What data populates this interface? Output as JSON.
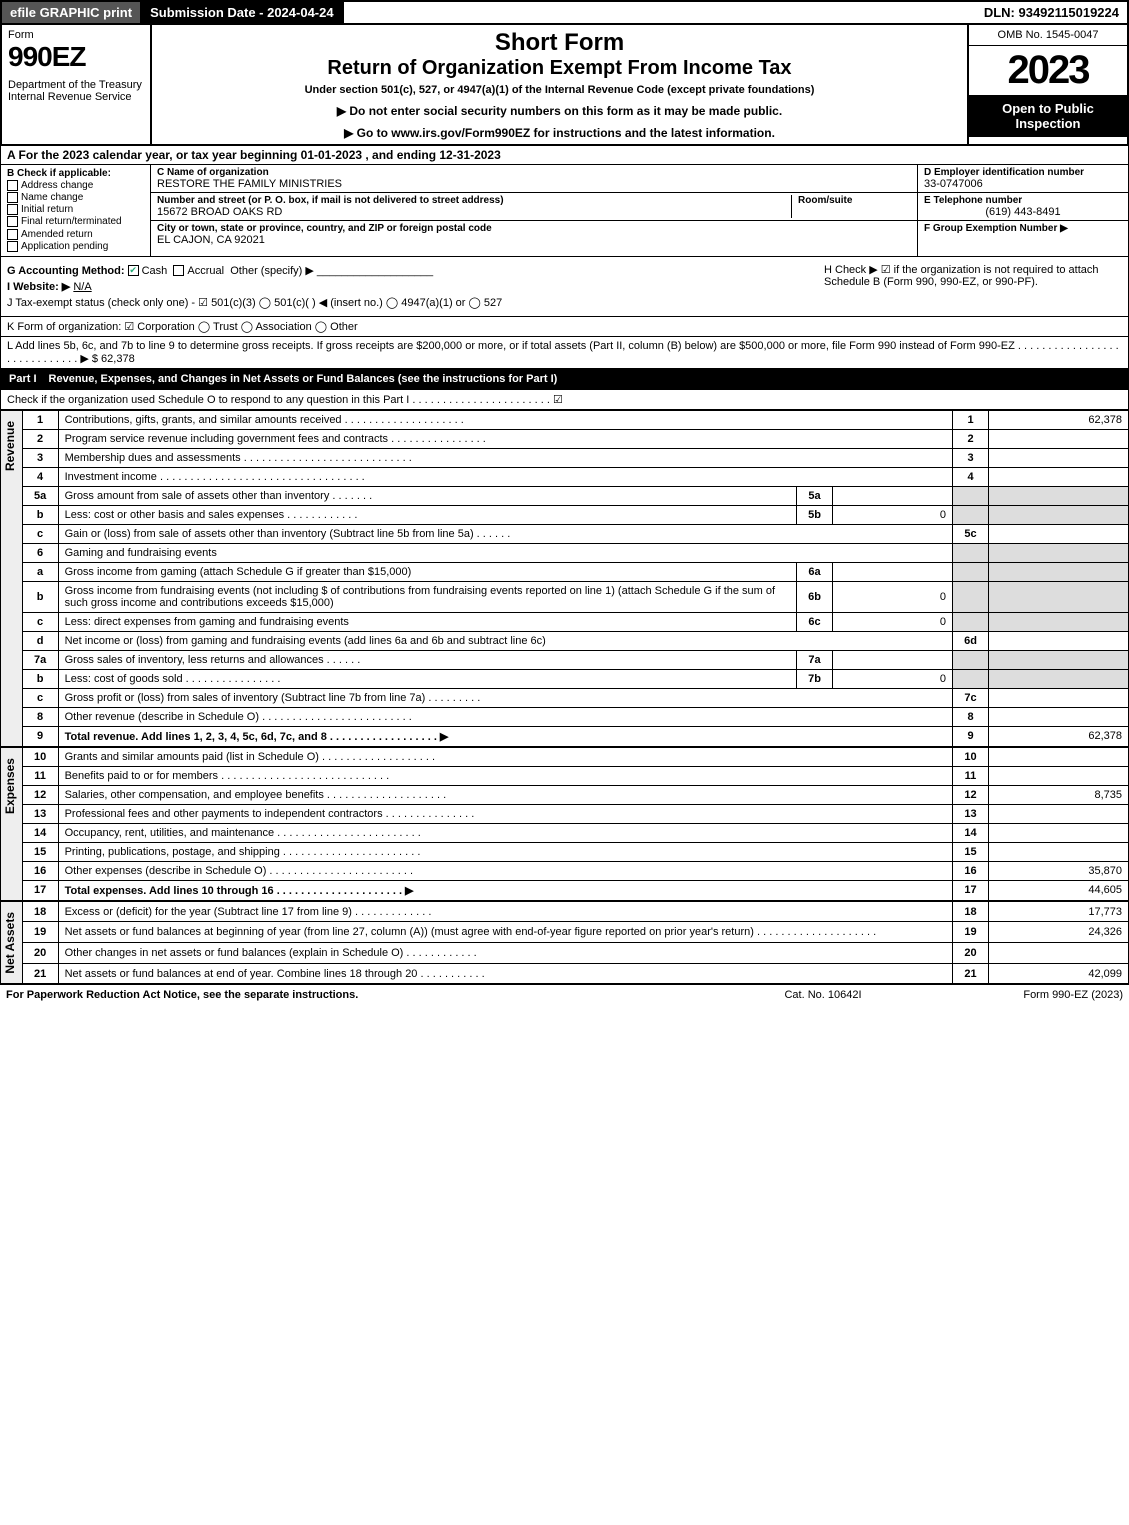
{
  "topbar": {
    "efile": "efile GRAPHIC print",
    "submission": "Submission Date - 2024-04-24",
    "dln": "DLN: 93492115019224"
  },
  "header": {
    "form_label": "Form",
    "form_number": "990EZ",
    "dept": "Department of the Treasury\nInternal Revenue Service",
    "title1": "Short Form",
    "title2": "Return of Organization Exempt From Income Tax",
    "subtitle": "Under section 501(c), 527, or 4947(a)(1) of the Internal Revenue Code (except private foundations)",
    "warn": "▶ Do not enter social security numbers on this form as it may be made public.",
    "goto": "▶ Go to www.irs.gov/Form990EZ for instructions and the latest information.",
    "omb": "OMB No. 1545-0047",
    "year": "2023",
    "inspect": "Open to Public Inspection"
  },
  "rowA": "A  For the 2023 calendar year, or tax year beginning 01-01-2023 , and ending 12-31-2023",
  "B": {
    "header": "B  Check if applicable:",
    "address_change": "Address change",
    "name_change": "Name change",
    "initial_return": "Initial return",
    "final_return": "Final return/terminated",
    "amended": "Amended return",
    "app_pending": "Application pending"
  },
  "C": {
    "label": "C Name of organization",
    "name": "RESTORE THE FAMILY MINISTRIES",
    "street_label": "Number and street (or P. O. box, if mail is not delivered to street address)",
    "street": "15672 BROAD OAKS RD",
    "room_label": "Room/suite",
    "city_label": "City or town, state or province, country, and ZIP or foreign postal code",
    "city": "EL CAJON, CA  92021"
  },
  "D": {
    "label": "D Employer identification number",
    "value": "33-0747006"
  },
  "E": {
    "label": "E Telephone number",
    "value": "(619) 443-8491"
  },
  "F": {
    "label": "F Group Exemption Number  ▶",
    "value": ""
  },
  "G": {
    "label": "G Accounting Method:",
    "cash": "Cash",
    "accrual": "Accrual",
    "other": "Other (specify) ▶"
  },
  "H": {
    "text": "H  Check ▶ ☑ if the organization is not required to attach Schedule B (Form 990, 990-EZ, or 990-PF)."
  },
  "I": {
    "label": "I Website: ▶",
    "value": "N/A"
  },
  "J": {
    "label": "J Tax-exempt status (check only one) - ☑ 501(c)(3)  ◯ 501(c)(  ) ◀ (insert no.)  ◯ 4947(a)(1) or  ◯ 527"
  },
  "K": {
    "label": "K Form of organization:  ☑ Corporation  ◯ Trust  ◯ Association  ◯ Other"
  },
  "L": {
    "text": "L Add lines 5b, 6c, and 7b to line 9 to determine gross receipts. If gross receipts are $200,000 or more, or if total assets (Part II, column (B) below) are $500,000 or more, file Form 990 instead of Form 990-EZ . . . . . . . . . . . . . . . . . . . . . . . . . . . . . ▶ $ 62,378"
  },
  "partI": {
    "label": "Part I",
    "title": "Revenue, Expenses, and Changes in Net Assets or Fund Balances (see the instructions for Part I)",
    "check_line": "Check if the organization used Schedule O to respond to any question in this Part I . . . . . . . . . . . . . . . . . . . . . . . ☑"
  },
  "sidebars": {
    "revenue": "Revenue",
    "expenses": "Expenses",
    "netassets": "Net Assets"
  },
  "lines": {
    "l1": {
      "num": "1",
      "desc": "Contributions, gifts, grants, and similar amounts received",
      "rnum": "1",
      "rval": "62,378"
    },
    "l2": {
      "num": "2",
      "desc": "Program service revenue including government fees and contracts",
      "rnum": "2",
      "rval": ""
    },
    "l3": {
      "num": "3",
      "desc": "Membership dues and assessments",
      "rnum": "3",
      "rval": ""
    },
    "l4": {
      "num": "4",
      "desc": "Investment income",
      "rnum": "4",
      "rval": ""
    },
    "l5a": {
      "num": "5a",
      "desc": "Gross amount from sale of assets other than inventory",
      "subnum": "5a",
      "subval": ""
    },
    "l5b": {
      "num": "b",
      "desc": "Less: cost or other basis and sales expenses",
      "subnum": "5b",
      "subval": "0"
    },
    "l5c": {
      "num": "c",
      "desc": "Gain or (loss) from sale of assets other than inventory (Subtract line 5b from line 5a)",
      "rnum": "5c",
      "rval": ""
    },
    "l6": {
      "num": "6",
      "desc": "Gaming and fundraising events"
    },
    "l6a": {
      "num": "a",
      "desc": "Gross income from gaming (attach Schedule G if greater than $15,000)",
      "subnum": "6a",
      "subval": ""
    },
    "l6b": {
      "num": "b",
      "desc": "Gross income from fundraising events (not including $                    of contributions from fundraising events reported on line 1) (attach Schedule G if the sum of such gross income and contributions exceeds $15,000)",
      "subnum": "6b",
      "subval": "0"
    },
    "l6c": {
      "num": "c",
      "desc": "Less: direct expenses from gaming and fundraising events",
      "subnum": "6c",
      "subval": "0"
    },
    "l6d": {
      "num": "d",
      "desc": "Net income or (loss) from gaming and fundraising events (add lines 6a and 6b and subtract line 6c)",
      "rnum": "6d",
      "rval": ""
    },
    "l7a": {
      "num": "7a",
      "desc": "Gross sales of inventory, less returns and allowances",
      "subnum": "7a",
      "subval": ""
    },
    "l7b": {
      "num": "b",
      "desc": "Less: cost of goods sold",
      "subnum": "7b",
      "subval": "0"
    },
    "l7c": {
      "num": "c",
      "desc": "Gross profit or (loss) from sales of inventory (Subtract line 7b from line 7a)",
      "rnum": "7c",
      "rval": ""
    },
    "l8": {
      "num": "8",
      "desc": "Other revenue (describe in Schedule O)",
      "rnum": "8",
      "rval": ""
    },
    "l9": {
      "num": "9",
      "desc": "Total revenue. Add lines 1, 2, 3, 4, 5c, 6d, 7c, and 8  . . . . . . . . . . . . . . . . . . ▶",
      "rnum": "9",
      "rval": "62,378"
    },
    "l10": {
      "num": "10",
      "desc": "Grants and similar amounts paid (list in Schedule O)",
      "rnum": "10",
      "rval": ""
    },
    "l11": {
      "num": "11",
      "desc": "Benefits paid to or for members",
      "rnum": "11",
      "rval": ""
    },
    "l12": {
      "num": "12",
      "desc": "Salaries, other compensation, and employee benefits",
      "rnum": "12",
      "rval": "8,735"
    },
    "l13": {
      "num": "13",
      "desc": "Professional fees and other payments to independent contractors",
      "rnum": "13",
      "rval": ""
    },
    "l14": {
      "num": "14",
      "desc": "Occupancy, rent, utilities, and maintenance",
      "rnum": "14",
      "rval": ""
    },
    "l15": {
      "num": "15",
      "desc": "Printing, publications, postage, and shipping",
      "rnum": "15",
      "rval": ""
    },
    "l16": {
      "num": "16",
      "desc": "Other expenses (describe in Schedule O)",
      "rnum": "16",
      "rval": "35,870"
    },
    "l17": {
      "num": "17",
      "desc": "Total expenses. Add lines 10 through 16  . . . . . . . . . . . . . . . . . . . . . ▶",
      "rnum": "17",
      "rval": "44,605"
    },
    "l18": {
      "num": "18",
      "desc": "Excess or (deficit) for the year (Subtract line 17 from line 9)",
      "rnum": "18",
      "rval": "17,773"
    },
    "l19": {
      "num": "19",
      "desc": "Net assets or fund balances at beginning of year (from line 27, column (A)) (must agree with end-of-year figure reported on prior year's return)",
      "rnum": "19",
      "rval": "24,326"
    },
    "l20": {
      "num": "20",
      "desc": "Other changes in net assets or fund balances (explain in Schedule O)",
      "rnum": "20",
      "rval": ""
    },
    "l21": {
      "num": "21",
      "desc": "Net assets or fund balances at end of year. Combine lines 18 through 20",
      "rnum": "21",
      "rval": "42,099"
    }
  },
  "footer": {
    "left": "For Paperwork Reduction Act Notice, see the separate instructions.",
    "mid": "Cat. No. 10642I",
    "right": "Form 990-EZ (2023)"
  }
}
